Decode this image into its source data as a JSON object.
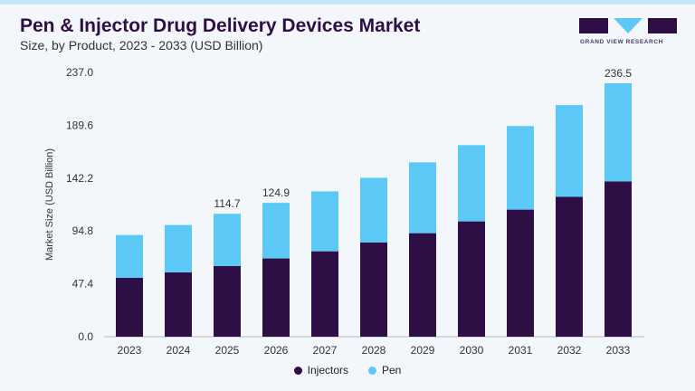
{
  "header": {
    "title": "Pen & Injector Drug Delivery Devices Market",
    "subtitle": "Size, by Product, 2023 - 2033 (USD Billion)"
  },
  "logo": {
    "text": "GRAND VIEW RESEARCH"
  },
  "colors": {
    "injectors": "#2e0f45",
    "pen": "#5bc8f5"
  },
  "chart_data": {
    "type": "bar",
    "stacked": true,
    "categories": [
      "2023",
      "2024",
      "2025",
      "2026",
      "2027",
      "2028",
      "2029",
      "2030",
      "2031",
      "2032",
      "2033"
    ],
    "series": [
      {
        "name": "Injectors",
        "values": [
          55.0,
          60.0,
          66.0,
          73.0,
          79.7,
          88.0,
          96.6,
          107.6,
          118.6,
          130.5,
          144.9
        ]
      },
      {
        "name": "Pen",
        "values": [
          39.9,
          44.2,
          48.7,
          51.9,
          55.9,
          60.3,
          66.1,
          71.2,
          78.0,
          85.6,
          91.6
        ]
      }
    ],
    "data_labels": {
      "2025": "114.7",
      "2026": "124.9",
      "2033": "236.5"
    },
    "ylabel": "Market Size (USD Billion)",
    "yticks": [
      "0.0",
      "47.4",
      "94.8",
      "142.2",
      "189.6",
      "237.0"
    ],
    "ylim": [
      0,
      237
    ],
    "grid": false,
    "legend": "bottom"
  }
}
